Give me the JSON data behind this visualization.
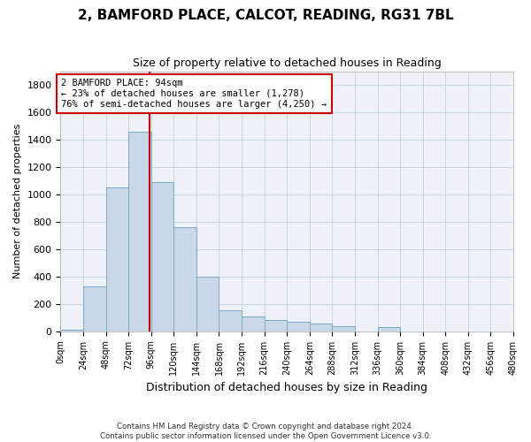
{
  "title": "2, BAMFORD PLACE, CALCOT, READING, RG31 7BL",
  "subtitle": "Size of property relative to detached houses in Reading",
  "xlabel": "Distribution of detached houses by size in Reading",
  "ylabel": "Number of detached properties",
  "bar_color": "#c8d8e8",
  "bar_edge_color": "#7aaac8",
  "grid_color": "#b8ccd8",
  "background_color": "#eef2f8",
  "property_line_color": "#cc0000",
  "annotation_box_color": "#cc0000",
  "tick_labels": [
    "0sqm",
    "24sqm",
    "48sqm",
    "72sqm",
    "96sqm",
    "120sqm",
    "144sqm",
    "168sqm",
    "192sqm",
    "216sqm",
    "240sqm",
    "264sqm",
    "288sqm",
    "312sqm",
    "336sqm",
    "360sqm",
    "384sqm",
    "408sqm",
    "432sqm",
    "456sqm",
    "480sqm"
  ],
  "values": [
    10,
    330,
    1050,
    1460,
    1090,
    760,
    400,
    150,
    110,
    80,
    70,
    55,
    40,
    0,
    30,
    0,
    0,
    0,
    0,
    0
  ],
  "bin_width": 24,
  "property_value": 94,
  "ylim": [
    0,
    1900
  ],
  "yticks": [
    0,
    200,
    400,
    600,
    800,
    1000,
    1200,
    1400,
    1600,
    1800
  ],
  "annotation_text": "2 BAMFORD PLACE: 94sqm\n← 23% of detached houses are smaller (1,278)\n76% of semi-detached houses are larger (4,250) →",
  "footer1": "Contains HM Land Registry data © Crown copyright and database right 2024.",
  "footer2": "Contains public sector information licensed under the Open Government Licence v3.0."
}
